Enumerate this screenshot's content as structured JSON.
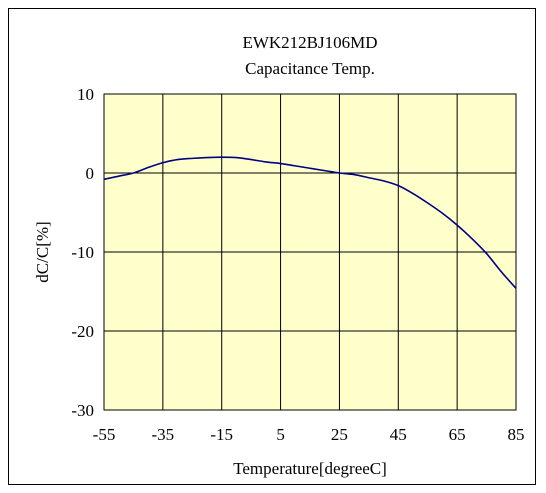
{
  "chart_data": {
    "type": "line",
    "title": "EWK212BJ106MD",
    "subtitle": "Capacitance Temp.",
    "xlabel": "Temperature[degreeC]",
    "ylabel": "dC/C[%]",
    "xlim": [
      -55,
      85
    ],
    "ylim": [
      -30,
      10
    ],
    "xticks": [
      -55,
      -35,
      -15,
      5,
      25,
      45,
      65,
      85
    ],
    "yticks": [
      10,
      0,
      -10,
      -20,
      -30
    ],
    "grid": true,
    "legend": "none",
    "colors": {
      "plot_bg": "#ffffcc",
      "line": "#000080",
      "grid": "#000000"
    },
    "series": [
      {
        "x": [
          -55,
          -50,
          -45,
          -40,
          -35,
          -30,
          -25,
          -20,
          -15,
          -10,
          -5,
          0,
          5,
          10,
          15,
          20,
          25,
          30,
          35,
          40,
          45,
          50,
          55,
          60,
          65,
          70,
          75,
          80,
          85
        ],
        "y": [
          -0.8,
          -0.4,
          0.0,
          0.7,
          1.3,
          1.7,
          1.85,
          1.95,
          2.0,
          1.95,
          1.7,
          1.4,
          1.2,
          0.9,
          0.6,
          0.3,
          0.0,
          -0.2,
          -0.6,
          -1.0,
          -1.6,
          -2.6,
          -3.8,
          -5.1,
          -6.6,
          -8.3,
          -10.2,
          -12.5,
          -14.6
        ]
      }
    ]
  }
}
